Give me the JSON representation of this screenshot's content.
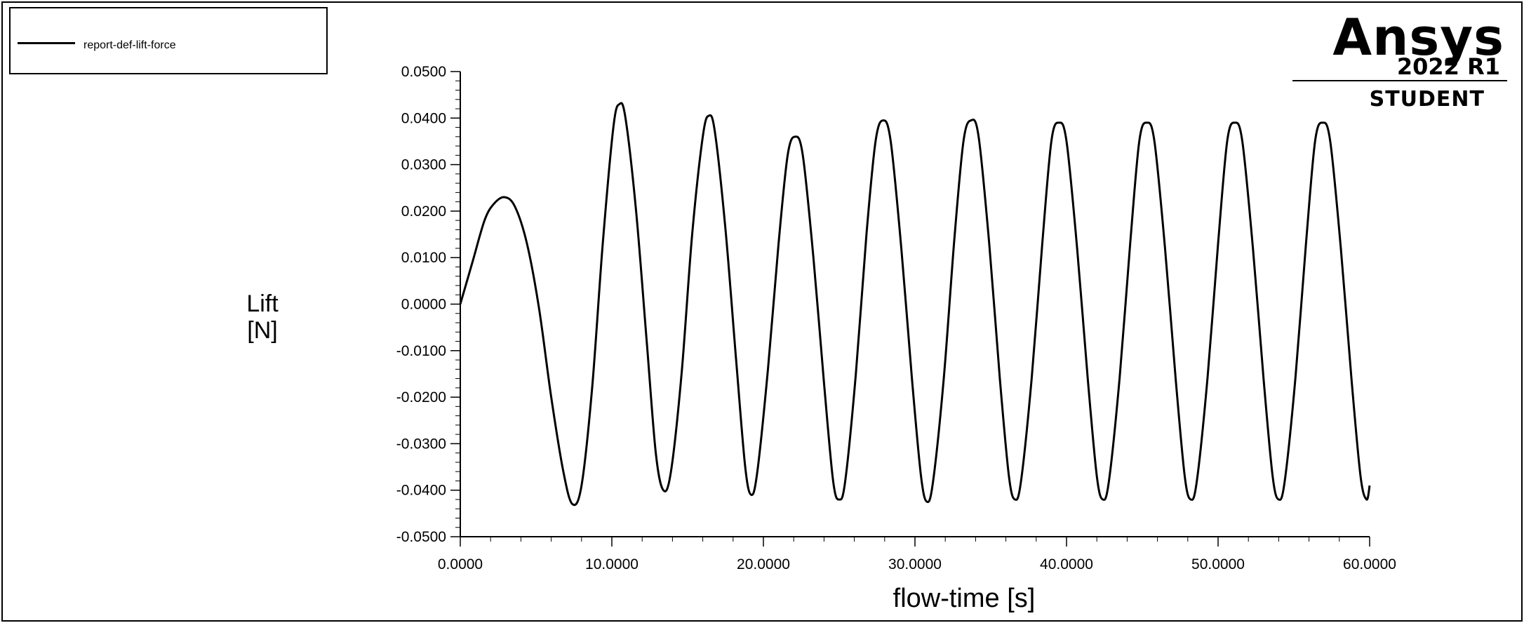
{
  "legend": {
    "label": "report-def-lift-force"
  },
  "branding": {
    "name": "Ansys",
    "version": "2022 R1",
    "edition": "STUDENT"
  },
  "axes": {
    "ylabel_line1": "Lift",
    "ylabel_line2": "[N]",
    "xlabel": "flow-time [s]"
  },
  "chart_data": {
    "type": "line",
    "title": "",
    "xlabel": "flow-time [s]",
    "ylabel": "Lift [N]",
    "xlim": [
      0,
      60
    ],
    "ylim": [
      -0.05,
      0.05
    ],
    "x_ticks": [
      "0.0000",
      "10.0000",
      "20.0000",
      "30.0000",
      "40.0000",
      "50.0000",
      "60.0000"
    ],
    "y_ticks": [
      "0.0500",
      "0.0400",
      "0.0300",
      "0.0200",
      "0.0100",
      "0.0000",
      "-0.0100",
      "-0.0200",
      "-0.0300",
      "-0.0400",
      "-0.0500"
    ],
    "grid": false,
    "legend_position": "top-left",
    "series": [
      {
        "name": "report-def-lift-force",
        "color": "#000000",
        "x": [
          0,
          0.8,
          1.6,
          2.2,
          2.9,
          3.6,
          4.4,
          5.2,
          6.0,
          6.8,
          7.4,
          8.0,
          8.7,
          9.4,
          10.1,
          10.5,
          10.9,
          11.6,
          12.3,
          12.9,
          13.4,
          13.9,
          14.6,
          15.3,
          16.0,
          16.4,
          16.8,
          17.5,
          18.2,
          18.8,
          19.2,
          19.6,
          20.3,
          21.0,
          21.6,
          22.1,
          22.6,
          23.3,
          24.0,
          24.6,
          25.0,
          25.4,
          26.1,
          26.8,
          27.4,
          27.9,
          28.4,
          29.1,
          29.8,
          30.4,
          30.8,
          31.2,
          31.9,
          32.6,
          33.2,
          33.7,
          34.2,
          34.9,
          35.6,
          36.2,
          36.6,
          37.0,
          37.7,
          38.4,
          39.0,
          39.5,
          40.0,
          40.7,
          41.4,
          42.0,
          42.4,
          42.8,
          43.5,
          44.2,
          44.8,
          45.3,
          45.8,
          46.5,
          47.2,
          47.8,
          48.2,
          48.6,
          49.3,
          50.0,
          50.6,
          51.1,
          51.6,
          52.3,
          53.0,
          53.6,
          54.0,
          54.4,
          55.1,
          55.8,
          56.4,
          56.9,
          57.4,
          58.1,
          58.8,
          59.4,
          59.8,
          60.0
        ],
        "y": [
          0.0,
          0.009,
          0.018,
          0.0215,
          0.023,
          0.021,
          0.013,
          -0.001,
          -0.02,
          -0.036,
          -0.043,
          -0.039,
          -0.018,
          0.013,
          0.038,
          0.043,
          0.04,
          0.02,
          -0.008,
          -0.032,
          -0.04,
          -0.036,
          -0.015,
          0.015,
          0.036,
          0.0405,
          0.037,
          0.016,
          -0.012,
          -0.035,
          -0.041,
          -0.036,
          -0.014,
          0.013,
          0.032,
          0.036,
          0.032,
          0.01,
          -0.017,
          -0.038,
          -0.042,
          -0.038,
          -0.015,
          0.015,
          0.035,
          0.0395,
          0.035,
          0.012,
          -0.016,
          -0.037,
          -0.0425,
          -0.038,
          -0.016,
          0.014,
          0.035,
          0.0395,
          0.036,
          0.013,
          -0.016,
          -0.037,
          -0.042,
          -0.038,
          -0.016,
          0.013,
          0.035,
          0.039,
          0.035,
          0.012,
          -0.016,
          -0.037,
          -0.042,
          -0.038,
          -0.016,
          0.013,
          0.035,
          0.039,
          0.035,
          0.012,
          -0.016,
          -0.037,
          -0.042,
          -0.038,
          -0.016,
          0.013,
          0.035,
          0.039,
          0.035,
          0.012,
          -0.016,
          -0.037,
          -0.042,
          -0.038,
          -0.016,
          0.013,
          0.035,
          0.039,
          0.035,
          0.012,
          -0.016,
          -0.037,
          -0.042,
          -0.039
        ]
      }
    ]
  }
}
